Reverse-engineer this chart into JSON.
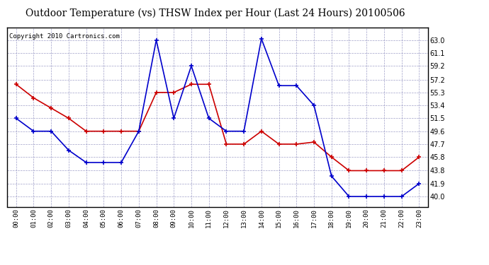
{
  "title": "Outdoor Temperature (vs) THSW Index per Hour (Last 24 Hours) 20100506",
  "copyright": "Copyright 2010 Cartronics.com",
  "hours": [
    "00:00",
    "01:00",
    "02:00",
    "03:00",
    "04:00",
    "05:00",
    "06:00",
    "07:00",
    "08:00",
    "09:00",
    "10:00",
    "11:00",
    "12:00",
    "13:00",
    "14:00",
    "15:00",
    "16:00",
    "17:00",
    "18:00",
    "19:00",
    "20:00",
    "21:00",
    "22:00",
    "23:00"
  ],
  "temp_red": [
    56.5,
    54.5,
    53.0,
    51.5,
    49.6,
    49.6,
    49.6,
    49.6,
    55.3,
    55.3,
    56.5,
    56.5,
    47.7,
    47.7,
    49.6,
    47.7,
    47.7,
    48.0,
    45.8,
    43.8,
    43.8,
    43.8,
    43.8,
    45.8
  ],
  "thsw_blue": [
    51.5,
    49.6,
    49.6,
    46.8,
    45.0,
    45.0,
    45.0,
    49.6,
    63.0,
    51.5,
    59.2,
    51.5,
    49.6,
    49.6,
    63.2,
    56.3,
    56.3,
    53.4,
    43.0,
    40.0,
    40.0,
    40.0,
    40.0,
    41.9
  ],
  "ylim_min": 38.5,
  "ylim_max": 64.8,
  "yticks": [
    40.0,
    41.9,
    43.8,
    45.8,
    47.7,
    49.6,
    51.5,
    53.4,
    55.3,
    57.2,
    59.2,
    61.1,
    63.0
  ],
  "bg_color": "#ffffff",
  "plot_bg": "#ffffff",
  "grid_color": "#8888bb",
  "red_color": "#cc0000",
  "blue_color": "#0000cc",
  "title_fontsize": 10,
  "copyright_fontsize": 6.5
}
